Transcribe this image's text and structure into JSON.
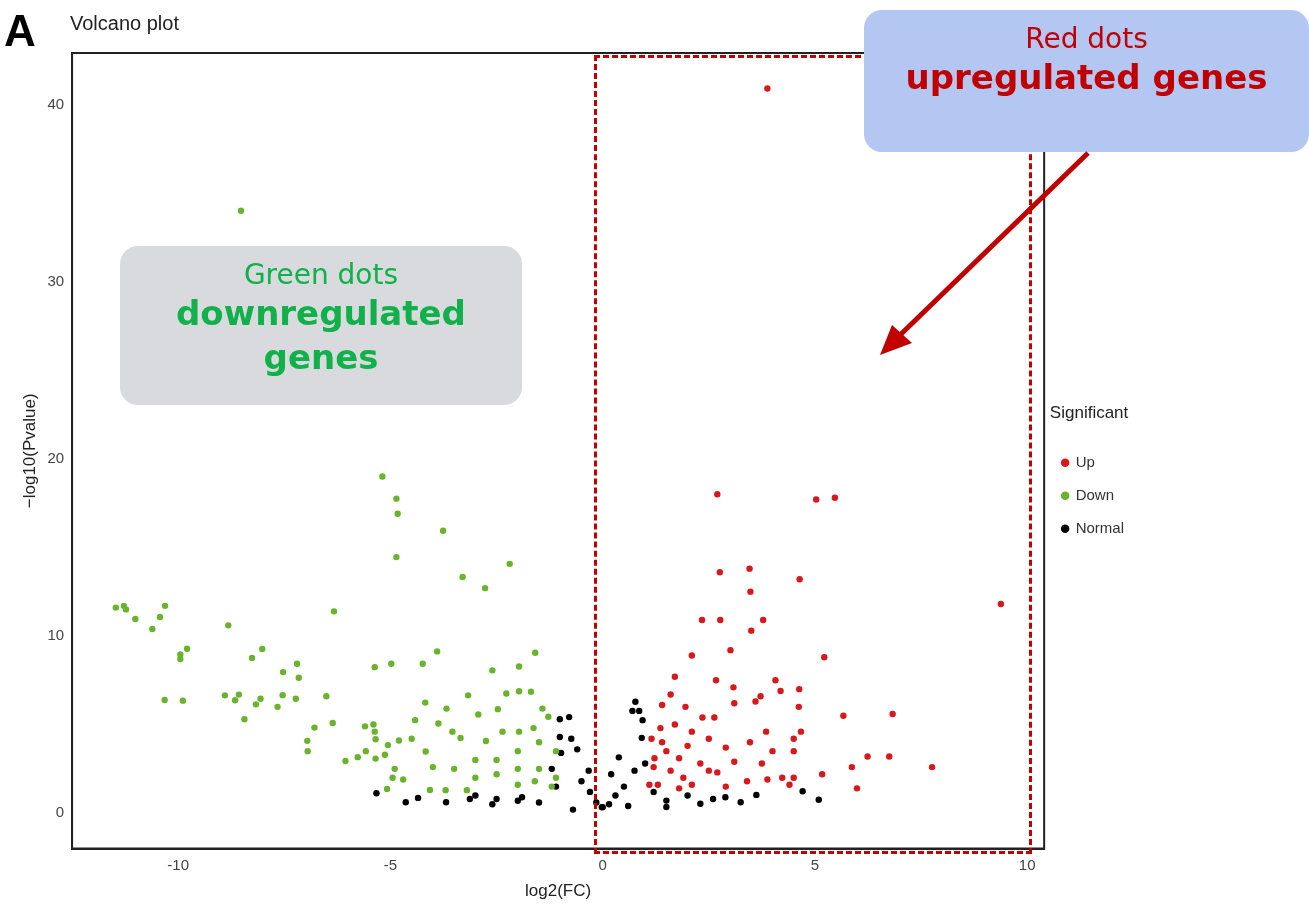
{
  "chart_data": {
    "type": "scatter",
    "title": "Volcano plot",
    "xlabel": "log2(FC)",
    "ylabel": "−log10(Pvalue)",
    "legend_title": "Significant",
    "legend": "right",
    "marker": "circle",
    "grid": false,
    "xlim": [
      -12.5,
      10.4
    ],
    "xticks": [
      -10,
      -5,
      0,
      5,
      10
    ],
    "ylim": [
      -2,
      42.9
    ],
    "yticks": [
      0,
      10,
      20,
      30,
      40
    ],
    "annotations": [
      "A",
      "Green dots",
      "downregulated genes",
      "Red dots",
      "upregulated genes"
    ],
    "series": [
      {
        "name": "Up",
        "color": "#d7191c",
        "x": [
          3.88,
          2.7,
          5.03,
          5.47,
          2.76,
          3.46,
          3.48,
          4.64,
          9.38,
          2.34,
          2.77,
          3.5,
          3.78,
          3.01,
          2.1,
          5.22,
          1.7,
          2.67,
          3.08,
          4.07,
          4.19,
          4.63,
          4.62,
          3.6,
          3.1,
          3.72,
          5.67,
          6.83,
          4.67,
          4.5,
          4.5,
          4.0,
          3.85,
          3.88,
          4.23,
          4.5,
          4.4,
          5.17,
          5.87,
          6.24,
          6.75,
          7.76,
          5.99,
          1.6,
          1.4,
          1.95,
          2.35,
          2.63,
          3.47,
          3.4,
          3.75,
          2.9,
          2.5,
          2.1,
          1.7,
          1.36,
          1.22,
          1.3,
          2.1,
          2.5,
          1.8,
          2.9,
          3.1,
          1.6,
          1.1,
          1.2,
          1.5,
          1.9,
          2.3,
          2.7,
          1.4,
          1.8,
          1.15,
          2.0
        ],
        "values": [
          40.9,
          18.0,
          17.7,
          17.8,
          13.6,
          13.8,
          12.5,
          13.2,
          11.8,
          10.9,
          10.9,
          10.3,
          10.9,
          9.2,
          8.9,
          8.8,
          7.7,
          7.5,
          7.1,
          7.5,
          6.9,
          7.0,
          6.0,
          6.3,
          6.2,
          6.6,
          5.5,
          5.6,
          4.6,
          4.2,
          3.5,
          3.5,
          4.6,
          1.9,
          2.0,
          2.0,
          1.6,
          2.2,
          2.6,
          3.2,
          3.2,
          2.6,
          1.4,
          6.7,
          6.1,
          6.0,
          5.4,
          5.4,
          4.0,
          1.8,
          2.8,
          3.7,
          4.2,
          4.6,
          5.0,
          4.8,
          3.1,
          1.6,
          1.6,
          2.4,
          3.1,
          1.5,
          2.9,
          2.4,
          1.6,
          2.6,
          3.5,
          2.0,
          2.8,
          2.3,
          4.0,
          1.4,
          4.2,
          3.8
        ]
      },
      {
        "name": "Down",
        "color": "#6ab42d",
        "x": [
          -8.52,
          -5.19,
          -4.86,
          -4.83,
          -4.86,
          -3.76,
          -3.3,
          -2.77,
          -2.19,
          -11.47,
          -11.28,
          -11.23,
          -11.01,
          -10.61,
          -10.43,
          -10.31,
          -9.95,
          -9.79,
          -9.95,
          -10.32,
          -9.89,
          -8.82,
          -8.26,
          -8.02,
          -7.53,
          -7.2,
          -7.16,
          -8.9,
          -8.66,
          -8.57,
          -8.17,
          -8.06,
          -7.66,
          -8.44,
          -7.54,
          -7.23,
          -6.51,
          -6.33,
          -6.79,
          -6.96,
          -6.95,
          -6.36,
          -6.06,
          -5.77,
          -5.58,
          -5.37,
          -4.98,
          -5.6,
          -5.4,
          -5.37,
          -5.35,
          -5.35,
          -5.13,
          -5.06,
          -5.08,
          -4.95,
          -4.9,
          -4.24,
          -3.9,
          -2.6,
          -1.97,
          -1.59,
          -3.17,
          -2.27,
          -1.97,
          -1.69,
          -4.18,
          -3.68,
          -3.87,
          -2.93,
          -2.47,
          -1.42,
          -1.28,
          -4.42,
          -4.8,
          -4.5,
          -4.17,
          -3.54,
          -3.35,
          -2.75,
          -2.36,
          -1.97,
          -1.63,
          -4.7,
          -4.07,
          -3.7,
          -3.2,
          -3.0,
          -2.5,
          -2.0,
          -1.5,
          -1.1,
          -1.1,
          -1.5,
          -2.0,
          -2.5,
          -3.0,
          -3.5,
          -4.0,
          -1.2,
          -2.0,
          -1.6
        ],
        "values": [
          34.0,
          19.0,
          17.75,
          16.9,
          14.45,
          15.94,
          13.33,
          12.7,
          14.07,
          11.6,
          11.7,
          11.5,
          10.96,
          10.4,
          11.07,
          11.7,
          8.95,
          9.28,
          8.7,
          6.39,
          6.35,
          10.6,
          8.76,
          9.27,
          7.96,
          8.43,
          7.64,
          6.65,
          6.37,
          6.69,
          6.14,
          6.46,
          6.0,
          5.3,
          6.66,
          6.46,
          6.6,
          11.39,
          4.83,
          4.08,
          3.5,
          5.09,
          2.94,
          3.16,
          3.5,
          8.24,
          8.43,
          4.9,
          5.0,
          4.6,
          4.17,
          3.08,
          3.3,
          3.84,
          1.37,
          2.0,
          2.5,
          8.43,
          9.13,
          8.06,
          8.28,
          9.05,
          6.65,
          6.75,
          6.88,
          6.85,
          6.24,
          5.9,
          5.06,
          5.57,
          5.87,
          5.9,
          5.44,
          5.25,
          4.1,
          4.2,
          3.48,
          4.6,
          4.24,
          4.07,
          4.6,
          4.6,
          4.8,
          1.9,
          1.31,
          1.3,
          1.3,
          2.0,
          2.2,
          2.5,
          2.5,
          2.0,
          3.5,
          4.0,
          3.5,
          3.0,
          3.0,
          2.5,
          2.6,
          1.5,
          1.6,
          1.8
        ]
      },
      {
        "name": "Normal",
        "color": "#000000",
        "x": [
          -5.33,
          -4.64,
          -4.35,
          -3.69,
          -3.13,
          -3.0,
          -2.6,
          -1.01,
          -0.79,
          -1.01,
          -0.74,
          -0.6,
          -0.98,
          -0.33,
          -0.02,
          -1.1,
          -1.9,
          -0.7,
          -2.5,
          -2.0,
          -1.5,
          -0.5,
          -0.3,
          -0.15,
          -1.2,
          0.77,
          0.86,
          0.7,
          0.94,
          0.92,
          0.38,
          0,
          0.75,
          1.5,
          2.3,
          2.89,
          3.25,
          3.62,
          4.71,
          5.09,
          1.5,
          0.2,
          0.5,
          0.3,
          0.15,
          1.0,
          1.2,
          2.0,
          2.6,
          0.6
        ],
        "values": [
          1.12,
          0.62,
          0.86,
          0.62,
          0.8,
          1.0,
          0.5,
          5.3,
          5.42,
          4.3,
          4.2,
          3.6,
          3.4,
          2.4,
          0.34,
          1.5,
          0.9,
          0.2,
          0.8,
          0.7,
          0.6,
          1.8,
          1.2,
          0.6,
          2.5,
          6.29,
          5.77,
          5.77,
          5.25,
          4.25,
          3.15,
          0.34,
          2.4,
          0.71,
          0.53,
          0.9,
          0.62,
          1.03,
          1.24,
          0.76,
          0.35,
          2.2,
          1.5,
          1.0,
          0.5,
          2.8,
          1.2,
          1.0,
          0.8,
          0.4
        ]
      }
    ]
  }
}
